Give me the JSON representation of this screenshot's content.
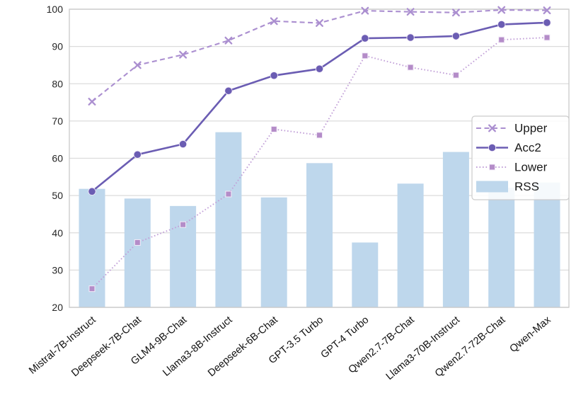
{
  "chart_data": {
    "type": "bar",
    "subtype": "combo-bar-line",
    "title": "",
    "xlabel": "",
    "ylabel": "",
    "categories": [
      "Mistral-7B-Instruct",
      "Deepseek-7B-Chat",
      "GLM4-9B-Chat",
      "Llama3-8B-Instruct",
      "Deepseek-6B-Chat",
      "GPT-3.5 Turbo",
      "GPT-4 Turbo",
      "Qwen2.7-7B-Chat",
      "Llama3-70B-Instruct",
      "Qwen2.7-72B-Chat",
      "Qwen-Max"
    ],
    "series": [
      {
        "name": "Upper",
        "kind": "line",
        "linestyle": "dashed",
        "marker": "x",
        "color": "#ab8fd0",
        "values": [
          75.2,
          85.0,
          87.8,
          91.6,
          96.8,
          96.3,
          99.6,
          99.3,
          99.1,
          99.8,
          99.7
        ]
      },
      {
        "name": "Acc2",
        "kind": "line",
        "linestyle": "solid",
        "marker": "circle",
        "color": "#6b5db3",
        "values": [
          51.1,
          61.0,
          63.8,
          78.1,
          82.2,
          84.0,
          92.2,
          92.4,
          92.8,
          95.9,
          96.4
        ]
      },
      {
        "name": "Lower",
        "kind": "line",
        "linestyle": "dotted",
        "marker": "square",
        "color": "#c2a0d8",
        "marker_color": "#b48cc8",
        "values": [
          25.0,
          37.4,
          42.2,
          50.4,
          67.8,
          66.2,
          87.5,
          84.4,
          82.3,
          91.8,
          92.4
        ]
      },
      {
        "name": "RSS",
        "kind": "bar",
        "color": "#bed7ec",
        "values": [
          51.8,
          49.2,
          47.2,
          67.0,
          49.5,
          58.7,
          37.4,
          53.2,
          61.7,
          52.1,
          53.5
        ]
      }
    ],
    "ylim": [
      20,
      100
    ],
    "yticks": [
      20,
      30,
      40,
      50,
      60,
      70,
      80,
      90,
      100
    ],
    "grid": "horizontal",
    "legend_position": "center-right",
    "legend_entries": [
      "Upper",
      "Acc2",
      "Lower",
      "RSS"
    ],
    "x_tick_rotation_deg": -40
  },
  "colors": {
    "background": "#ffffff",
    "gridline": "#dcdcdc",
    "spine": "#c9c9c9",
    "tick_text": "#262626",
    "legend_border": "#cccccc",
    "legend_background": "#ffffff",
    "marker_edge": "#f3ecf8"
  }
}
